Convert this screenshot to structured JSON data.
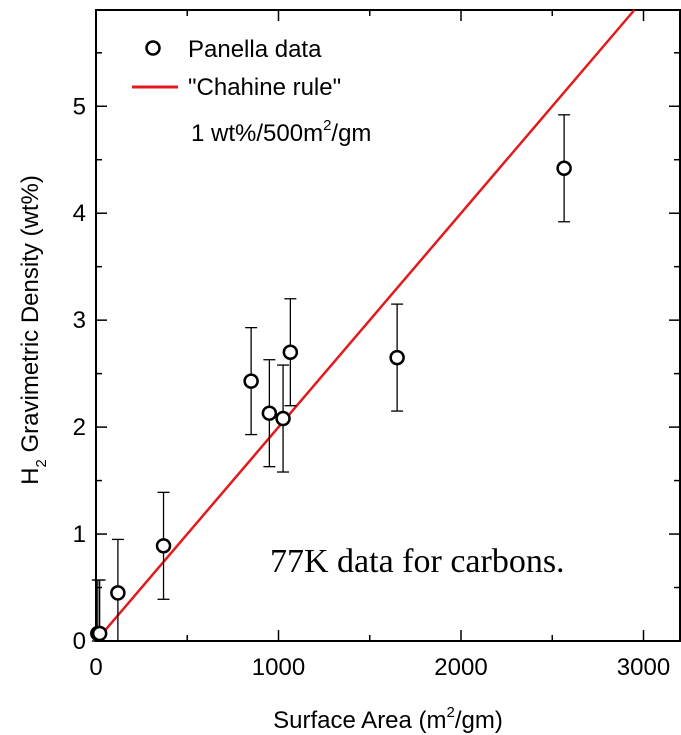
{
  "chart_data": {
    "type": "scatter",
    "xlabel": {
      "main": "Surface Area (m",
      "sup": "2",
      "tail": "/gm)"
    },
    "ylabel": {
      "pre": "H",
      "sub": "2",
      "tail": " Gravimetric Density (wt%)"
    },
    "xlim": [
      0,
      3200
    ],
    "ylim": [
      0,
      5.9
    ],
    "xticks": [
      0,
      1000,
      2000,
      3000
    ],
    "xtick_labels": [
      "0",
      "1000",
      "2000",
      "3000"
    ],
    "yticks": [
      0,
      1,
      2,
      3,
      4,
      5
    ],
    "ytick_labels": [
      "0",
      "1",
      "2",
      "3",
      "4",
      "5"
    ],
    "x_minor_ticks": [
      500,
      1500,
      2500
    ],
    "y_minor_ticks": [
      0.5,
      1.5,
      2.5,
      3.5,
      4.5,
      5.5
    ],
    "grid": false,
    "legend_position": "top-left",
    "series": [
      {
        "name": "Panella data",
        "marker": "open-circle",
        "color": "#000000",
        "points": [
          {
            "x": 10,
            "y": 0.07,
            "err": 0.5
          },
          {
            "x": 20,
            "y": 0.07,
            "err": 0.5
          },
          {
            "x": 120,
            "y": 0.45,
            "err": 0.5
          },
          {
            "x": 370,
            "y": 0.89,
            "err": 0.5
          },
          {
            "x": 850,
            "y": 2.43,
            "err": 0.5
          },
          {
            "x": 950,
            "y": 2.13,
            "err": 0.5
          },
          {
            "x": 1025,
            "y": 2.08,
            "err": 0.5
          },
          {
            "x": 1065,
            "y": 2.7,
            "err": 0.5
          },
          {
            "x": 1650,
            "y": 2.65,
            "err": 0.5
          },
          {
            "x": 2565,
            "y": 4.42,
            "err": 0.5
          }
        ]
      },
      {
        "name": "\"Chahine rule\"",
        "marker": "line",
        "color": "#e31a1c",
        "slope_per_m2": 0.002,
        "x_range": [
          0,
          2950
        ]
      }
    ],
    "legend_note": {
      "pre": "1 wt%/500m",
      "sup": "2",
      "tail": "/gm"
    },
    "annotation": "77K data for carbons."
  }
}
